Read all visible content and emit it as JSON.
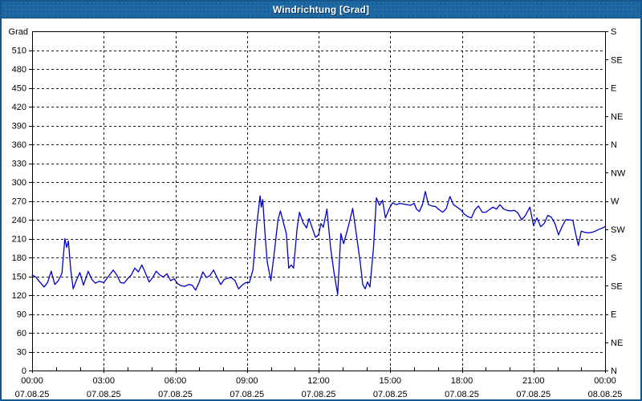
{
  "title_bar": {
    "title": "Windrichtung [Grad]"
  },
  "colors": {
    "titlebar": "#1e6aa7",
    "window_border": "#17568c",
    "axis": "#000000",
    "grid": "#1a1a1a",
    "series_line": "#0000c3",
    "plot_background": "#ffffff"
  },
  "chart_data": {
    "type": "line",
    "title": "Windrichtung [Grad]",
    "xlabel": "",
    "ylabel": "Grad",
    "xlim_hours": [
      0,
      24
    ],
    "ylim": [
      0,
      540
    ],
    "grid": true,
    "legend_position": "none",
    "left_axis": {
      "unit_label": "Grad",
      "ticks": [
        {
          "value": 0,
          "label": "0"
        },
        {
          "value": 30,
          "label": "30"
        },
        {
          "value": 60,
          "label": "60"
        },
        {
          "value": 90,
          "label": "90"
        },
        {
          "value": 120,
          "label": "120"
        },
        {
          "value": 150,
          "label": "150"
        },
        {
          "value": 180,
          "label": "180"
        },
        {
          "value": 210,
          "label": "210"
        },
        {
          "value": 240,
          "label": "240"
        },
        {
          "value": 270,
          "label": "270"
        },
        {
          "value": 300,
          "label": "300"
        },
        {
          "value": 330,
          "label": "330"
        },
        {
          "value": 360,
          "label": "360"
        },
        {
          "value": 390,
          "label": "390"
        },
        {
          "value": 420,
          "label": "420"
        },
        {
          "value": 450,
          "label": "450"
        },
        {
          "value": 480,
          "label": "480"
        },
        {
          "value": 510,
          "label": "510"
        }
      ]
    },
    "right_axis": {
      "ticks": [
        {
          "value": 540,
          "label": "S"
        },
        {
          "value": 495,
          "label": "SE"
        },
        {
          "value": 450,
          "label": "E"
        },
        {
          "value": 405,
          "label": "NE"
        },
        {
          "value": 360,
          "label": "N"
        },
        {
          "value": 315,
          "label": "NW"
        },
        {
          "value": 270,
          "label": "W"
        },
        {
          "value": 225,
          "label": "SW"
        },
        {
          "value": 180,
          "label": "S"
        },
        {
          "value": 135,
          "label": "SE"
        },
        {
          "value": 90,
          "label": "E"
        },
        {
          "value": 45,
          "label": "NE"
        },
        {
          "value": 0,
          "label": "N"
        }
      ]
    },
    "x_ticks": [
      {
        "hour": 0,
        "time": "00:00",
        "date": "07.08.25"
      },
      {
        "hour": 3,
        "time": "03:00",
        "date": "07.08.25"
      },
      {
        "hour": 6,
        "time": "06:00",
        "date": "07.08.25"
      },
      {
        "hour": 9,
        "time": "09:00",
        "date": "07.08.25"
      },
      {
        "hour": 12,
        "time": "12:00",
        "date": "07.08.25"
      },
      {
        "hour": 15,
        "time": "15:00",
        "date": "07.08.25"
      },
      {
        "hour": 18,
        "time": "18:00",
        "date": "07.08.25"
      },
      {
        "hour": 21,
        "time": "21:00",
        "date": "07.08.25"
      },
      {
        "hour": 24,
        "time": "00:00",
        "date": "08.08.25"
      }
    ],
    "y_gridline_step": 30,
    "x_gridline_step_hours": 3,
    "minor_x_tick_step_hours": 1,
    "series": [
      {
        "name": "Windrichtung",
        "color": "#0000c3",
        "points": [
          [
            0.0,
            152
          ],
          [
            0.15,
            149
          ],
          [
            0.3,
            142
          ],
          [
            0.5,
            133
          ],
          [
            0.65,
            140
          ],
          [
            0.8,
            158
          ],
          [
            0.95,
            137
          ],
          [
            1.1,
            143
          ],
          [
            1.25,
            155
          ],
          [
            1.37,
            210
          ],
          [
            1.45,
            196
          ],
          [
            1.52,
            206
          ],
          [
            1.62,
            160
          ],
          [
            1.72,
            130
          ],
          [
            1.85,
            143
          ],
          [
            2.0,
            156
          ],
          [
            2.15,
            136
          ],
          [
            2.35,
            158
          ],
          [
            2.5,
            145
          ],
          [
            2.65,
            139
          ],
          [
            2.8,
            142
          ],
          [
            3.0,
            140
          ],
          [
            3.2,
            150
          ],
          [
            3.4,
            160
          ],
          [
            3.55,
            152
          ],
          [
            3.7,
            140
          ],
          [
            3.85,
            139
          ],
          [
            4.0,
            146
          ],
          [
            4.15,
            152
          ],
          [
            4.3,
            163
          ],
          [
            4.45,
            157
          ],
          [
            4.6,
            168
          ],
          [
            4.75,
            155
          ],
          [
            4.9,
            141
          ],
          [
            5.05,
            148
          ],
          [
            5.2,
            158
          ],
          [
            5.35,
            152
          ],
          [
            5.5,
            149
          ],
          [
            5.65,
            154
          ],
          [
            5.8,
            143
          ],
          [
            5.95,
            146
          ],
          [
            6.1,
            138
          ],
          [
            6.25,
            135
          ],
          [
            6.4,
            134
          ],
          [
            6.55,
            137
          ],
          [
            6.7,
            136
          ],
          [
            6.85,
            128
          ],
          [
            7.0,
            141
          ],
          [
            7.15,
            157
          ],
          [
            7.3,
            148
          ],
          [
            7.45,
            151
          ],
          [
            7.6,
            160
          ],
          [
            7.75,
            148
          ],
          [
            7.9,
            137
          ],
          [
            8.05,
            145
          ],
          [
            8.2,
            147
          ],
          [
            8.35,
            148
          ],
          [
            8.5,
            143
          ],
          [
            8.65,
            130
          ],
          [
            8.8,
            136
          ],
          [
            8.95,
            140
          ],
          [
            9.1,
            140
          ],
          [
            9.25,
            160
          ],
          [
            9.4,
            228
          ],
          [
            9.55,
            278
          ],
          [
            9.6,
            260
          ],
          [
            9.66,
            272
          ],
          [
            9.75,
            220
          ],
          [
            9.85,
            173
          ],
          [
            10.0,
            143
          ],
          [
            10.15,
            190
          ],
          [
            10.3,
            240
          ],
          [
            10.4,
            254
          ],
          [
            10.55,
            232
          ],
          [
            10.65,
            218
          ],
          [
            10.75,
            163
          ],
          [
            10.85,
            168
          ],
          [
            10.95,
            163
          ],
          [
            11.1,
            226
          ],
          [
            11.2,
            252
          ],
          [
            11.35,
            235
          ],
          [
            11.5,
            227
          ],
          [
            11.6,
            242
          ],
          [
            11.75,
            225
          ],
          [
            11.87,
            212
          ],
          [
            12.0,
            216
          ],
          [
            12.1,
            234
          ],
          [
            12.2,
            228
          ],
          [
            12.35,
            257
          ],
          [
            12.5,
            196
          ],
          [
            12.65,
            155
          ],
          [
            12.8,
            121
          ],
          [
            12.93,
            218
          ],
          [
            13.05,
            202
          ],
          [
            13.25,
            230
          ],
          [
            13.43,
            258
          ],
          [
            13.6,
            212
          ],
          [
            13.75,
            170
          ],
          [
            13.85,
            137
          ],
          [
            13.95,
            130
          ],
          [
            14.05,
            141
          ],
          [
            14.15,
            133
          ],
          [
            14.3,
            195
          ],
          [
            14.42,
            275
          ],
          [
            14.55,
            263
          ],
          [
            14.68,
            271
          ],
          [
            14.8,
            243
          ],
          [
            14.95,
            257
          ],
          [
            15.1,
            267
          ],
          [
            15.25,
            264
          ],
          [
            15.4,
            266
          ],
          [
            15.55,
            265
          ],
          [
            15.7,
            264
          ],
          [
            15.85,
            263
          ],
          [
            16.0,
            266
          ],
          [
            16.1,
            257
          ],
          [
            16.22,
            253
          ],
          [
            16.35,
            264
          ],
          [
            16.47,
            285
          ],
          [
            16.6,
            264
          ],
          [
            16.75,
            262
          ],
          [
            16.9,
            261
          ],
          [
            17.05,
            256
          ],
          [
            17.2,
            252
          ],
          [
            17.35,
            258
          ],
          [
            17.5,
            277
          ],
          [
            17.65,
            264
          ],
          [
            17.8,
            260
          ],
          [
            17.95,
            256
          ],
          [
            18.1,
            249
          ],
          [
            18.25,
            245
          ],
          [
            18.4,
            243
          ],
          [
            18.55,
            256
          ],
          [
            18.7,
            262
          ],
          [
            18.85,
            252
          ],
          [
            19.0,
            252
          ],
          [
            19.15,
            256
          ],
          [
            19.3,
            260
          ],
          [
            19.45,
            257
          ],
          [
            19.6,
            264
          ],
          [
            19.75,
            257
          ],
          [
            19.9,
            255
          ],
          [
            20.05,
            254
          ],
          [
            20.2,
            255
          ],
          [
            20.35,
            251
          ],
          [
            20.5,
            240
          ],
          [
            20.65,
            246
          ],
          [
            20.85,
            260
          ],
          [
            21.0,
            231
          ],
          [
            21.15,
            243
          ],
          [
            21.3,
            229
          ],
          [
            21.45,
            234
          ],
          [
            21.6,
            247
          ],
          [
            21.75,
            244
          ],
          [
            21.9,
            234
          ],
          [
            22.05,
            216
          ],
          [
            22.2,
            229
          ],
          [
            22.35,
            240
          ],
          [
            22.5,
            240
          ],
          [
            22.65,
            239
          ],
          [
            22.8,
            212
          ],
          [
            22.88,
            199
          ],
          [
            23.0,
            222
          ],
          [
            23.15,
            220
          ],
          [
            23.3,
            219
          ],
          [
            23.45,
            220
          ],
          [
            23.6,
            222
          ],
          [
            23.75,
            225
          ],
          [
            23.9,
            227
          ],
          [
            24.0,
            229
          ]
        ]
      }
    ]
  }
}
